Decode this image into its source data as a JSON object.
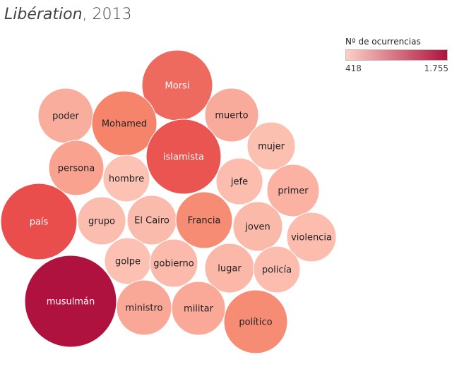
{
  "title": {
    "publication": "Libération",
    "year": ", 2013"
  },
  "legend": {
    "title": "Nº de ocurrencias",
    "min_label": "418",
    "max_label": "1.755",
    "color_low": "#fdd0c4",
    "color_high": "#b0123f"
  },
  "chart_data": {
    "type": "bubble",
    "title": "Libération, 2013",
    "legend_title": "Nº de ocurrencias",
    "value_range": [
      418,
      1755
    ],
    "legend_placement": "top-right",
    "items": [
      {
        "label": "Morsi",
        "value": 1050,
        "color": "#ee6a5e"
      },
      {
        "label": "poder",
        "value": 470,
        "color": "#f9ad9d"
      },
      {
        "label": "Mohamed",
        "value": 860,
        "color": "#f6846b"
      },
      {
        "label": "muerto",
        "value": 500,
        "color": "#f9ab9b"
      },
      {
        "label": "islamista",
        "value": 1180,
        "color": "#ea5451"
      },
      {
        "label": "mujer",
        "value": 430,
        "color": "#fcc0b1"
      },
      {
        "label": "persona",
        "value": 560,
        "color": "#f9a28f"
      },
      {
        "label": "hombre",
        "value": 430,
        "color": "#fcc2b4"
      },
      {
        "label": "jefe",
        "value": 420,
        "color": "#fcbdaf"
      },
      {
        "label": "primer",
        "value": 500,
        "color": "#fbb2a3"
      },
      {
        "label": "país",
        "value": 1240,
        "color": "#e94e4d"
      },
      {
        "label": "grupo",
        "value": 450,
        "color": "#fbbdae"
      },
      {
        "label": "El Cairo",
        "value": 450,
        "color": "#fbbbac"
      },
      {
        "label": "Francia",
        "value": 780,
        "color": "#f58c73"
      },
      {
        "label": "joven",
        "value": 450,
        "color": "#fbb9a9"
      },
      {
        "label": "violencia",
        "value": 440,
        "color": "#fcbdaf"
      },
      {
        "label": "golpe",
        "value": 420,
        "color": "#fcc1b3"
      },
      {
        "label": "gobierno",
        "value": 450,
        "color": "#fbbaab"
      },
      {
        "label": "lugar",
        "value": 460,
        "color": "#fbb8a8"
      },
      {
        "label": "policía",
        "value": 430,
        "color": "#fcbdaf"
      },
      {
        "label": "musulmán",
        "value": 1755,
        "color": "#b0123f"
      },
      {
        "label": "ministro",
        "value": 560,
        "color": "#f9a796"
      },
      {
        "label": "militar",
        "value": 540,
        "color": "#faa999"
      },
      {
        "label": "político",
        "value": 780,
        "color": "#f58c73"
      }
    ]
  }
}
